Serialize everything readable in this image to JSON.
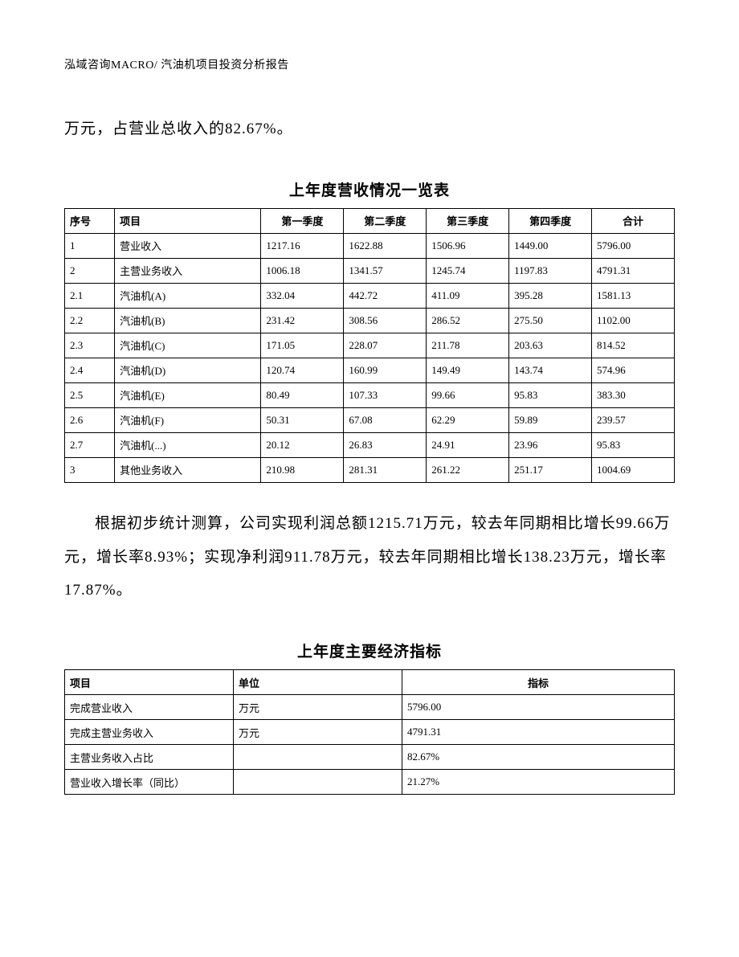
{
  "header": {
    "text": "泓域咨询MACRO/   汽油机项目投资分析报告"
  },
  "para1_fragment": "万元，占营业总收入的82.67%。",
  "table1": {
    "caption": "上年度营收情况一览表",
    "columns": [
      "序号",
      "项目",
      "第一季度",
      "第二季度",
      "第三季度",
      "第四季度",
      "合计"
    ],
    "rows": [
      [
        "1",
        "营业收入",
        "1217.16",
        "1622.88",
        "1506.96",
        "1449.00",
        "5796.00"
      ],
      [
        "2",
        "主营业务收入",
        "1006.18",
        "1341.57",
        "1245.74",
        "1197.83",
        "4791.31"
      ],
      [
        "2.1",
        "汽油机(A)",
        "332.04",
        "442.72",
        "411.09",
        "395.28",
        "1581.13"
      ],
      [
        "2.2",
        "汽油机(B)",
        "231.42",
        "308.56",
        "286.52",
        "275.50",
        "1102.00"
      ],
      [
        "2.3",
        "汽油机(C)",
        "171.05",
        "228.07",
        "211.78",
        "203.63",
        "814.52"
      ],
      [
        "2.4",
        "汽油机(D)",
        "120.74",
        "160.99",
        "149.49",
        "143.74",
        "574.96"
      ],
      [
        "2.5",
        "汽油机(E)",
        "80.49",
        "107.33",
        "99.66",
        "95.83",
        "383.30"
      ],
      [
        "2.6",
        "汽油机(F)",
        "50.31",
        "67.08",
        "62.29",
        "59.89",
        "239.57"
      ],
      [
        "2.7",
        "汽油机(...)",
        "20.12",
        "26.83",
        "24.91",
        "23.96",
        "95.83"
      ],
      [
        "3",
        "其他业务收入",
        "210.98",
        "281.31",
        "261.22",
        "251.17",
        "1004.69"
      ]
    ]
  },
  "para2": "根据初步统计测算，公司实现利润总额1215.71万元，较去年同期相比增长99.66万元，增长率8.93%；实现净利润911.78万元，较去年同期相比增长138.23万元，增长率17.87%。",
  "table2": {
    "caption": "上年度主要经济指标",
    "columns": [
      "项目",
      "单位",
      "指标"
    ],
    "rows": [
      [
        "完成营业收入",
        "万元",
        "5796.00"
      ],
      [
        "完成主营业务收入",
        "万元",
        "4791.31"
      ],
      [
        "主营业务收入占比",
        "",
        "82.67%"
      ],
      [
        "营业收入增长率（同比）",
        "",
        "21.27%"
      ]
    ]
  }
}
